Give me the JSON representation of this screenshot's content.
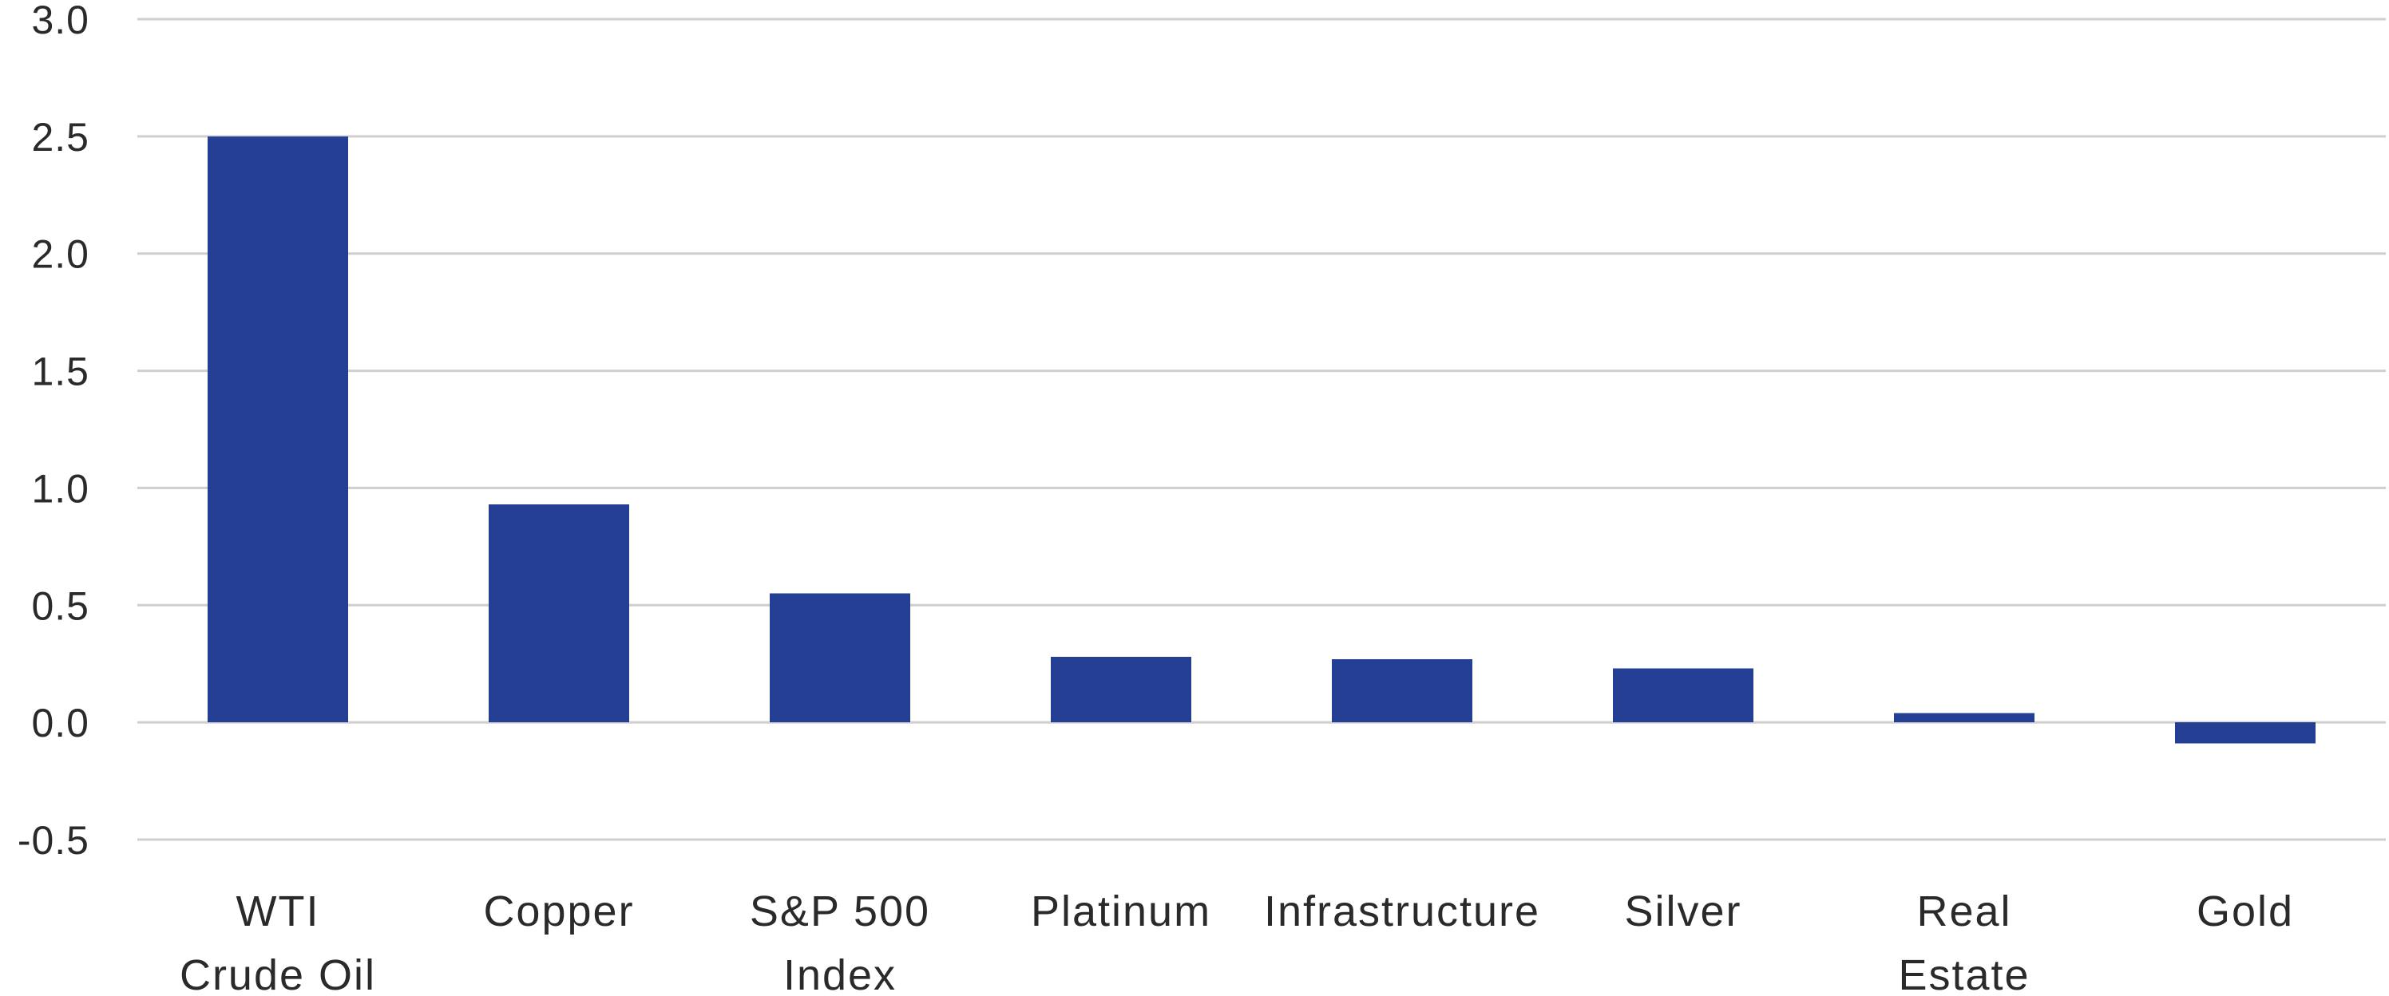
{
  "chart_data": {
    "type": "bar",
    "title": "",
    "xlabel": "",
    "ylabel": "",
    "categories": [
      [
        "WTI",
        "Crude Oil"
      ],
      [
        "Copper"
      ],
      [
        "S&P 500",
        "Index"
      ],
      [
        "Platinum"
      ],
      [
        "Infrastructure"
      ],
      [
        "Silver"
      ],
      [
        "Real",
        "Estate"
      ],
      [
        "Gold"
      ]
    ],
    "values": [
      2.5,
      0.93,
      0.55,
      0.28,
      0.27,
      0.23,
      0.04,
      -0.09
    ],
    "ylim": [
      -0.5,
      3.0
    ],
    "yticks": [
      "-0.5",
      "0.0",
      "0.5",
      "1.0",
      "1.5",
      "2.0",
      "2.5",
      "3.0"
    ],
    "grid": true,
    "legend": "none",
    "colors": {
      "bar": "#243f94",
      "grid": "#cfcfcf",
      "text": "#2a2a2a"
    }
  }
}
